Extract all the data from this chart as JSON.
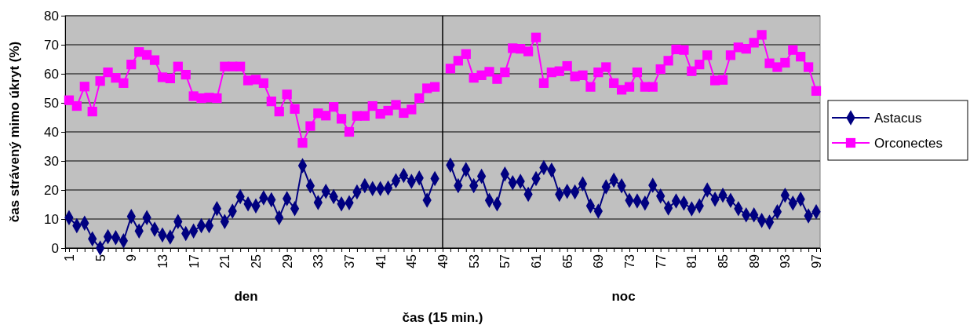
{
  "chart_data": {
    "type": "line",
    "xlabel": "čas (15 min.)",
    "ylabel": "čas strávený mimo úkryt (%)",
    "categories": [
      "1",
      null,
      null,
      null,
      "5",
      null,
      null,
      null,
      "9",
      null,
      null,
      null,
      "13",
      null,
      null,
      null,
      "17",
      null,
      null,
      null,
      "21",
      null,
      null,
      null,
      "25",
      null,
      null,
      null,
      "29",
      null,
      null,
      null,
      "33",
      null,
      null,
      null,
      "37",
      null,
      null,
      null,
      "41",
      null,
      null,
      null,
      "45",
      null,
      null,
      null,
      "49",
      null,
      null,
      null,
      "53",
      null,
      null,
      null,
      "57",
      null,
      null,
      null,
      "61",
      null,
      null,
      null,
      "65",
      null,
      null,
      null,
      "69",
      null,
      null,
      null,
      "73",
      null,
      null,
      null,
      "77",
      null,
      null,
      null,
      "81",
      null,
      null,
      null,
      "85",
      null,
      null,
      null,
      "89",
      null,
      null,
      null,
      "93",
      null,
      null,
      null,
      "97"
    ],
    "series": [
      {
        "name": "Astacus",
        "color": "#000080",
        "marker": "diamond",
        "values": [
          10.5,
          7.7,
          8.6,
          3.2,
          0,
          3.9,
          3.6,
          2.5,
          10.9,
          5.9,
          10.5,
          6.5,
          4.5,
          3.8,
          9.1,
          5,
          5.9,
          7.7,
          7.7,
          13.6,
          9.1,
          12.7,
          17.7,
          15.2,
          14.5,
          17.3,
          16.6,
          10.5,
          17,
          13.6,
          28.4,
          21.4,
          15.7,
          19.5,
          17.7,
          15.2,
          15.6,
          19.3,
          21.5,
          20.5,
          20.5,
          20.7,
          23.2,
          25,
          23,
          24.1,
          16.5,
          23.9,
          null,
          28.6,
          21.5,
          27,
          21.5,
          24.7,
          16.4,
          15.2,
          25.5,
          22.5,
          23,
          18.5,
          23.9,
          27.7,
          26.8,
          18.5,
          19.5,
          19.3,
          22.1,
          14.5,
          12.7,
          21.1,
          23.4,
          21.4,
          16.4,
          16.2,
          15.5,
          21.6,
          17.9,
          13.8,
          16.2,
          15.5,
          13.5,
          14.5,
          20,
          16.8,
          18.2,
          16.4,
          13.6,
          11.4,
          11.4,
          9.5,
          8.9,
          12.5,
          18.2,
          15.5,
          16.8,
          11.1,
          12.5
        ]
      },
      {
        "name": "Orconectes",
        "color": "#ff00ff",
        "marker": "square",
        "values": [
          50.9,
          48.9,
          55.6,
          47,
          57.5,
          60.5,
          58.6,
          56.8,
          63.2,
          67.5,
          66.5,
          64.7,
          58.8,
          58.4,
          62.5,
          59.7,
          52.3,
          51.6,
          51.8,
          51.6,
          62.5,
          62.5,
          62.5,
          57.7,
          58,
          56.8,
          50.5,
          47,
          52.9,
          47.9,
          36.2,
          42,
          46.4,
          45.6,
          48.6,
          44.5,
          40,
          45.5,
          45.5,
          48.9,
          46.2,
          47.3,
          49.3,
          46.5,
          47.7,
          51.6,
          55,
          55.5,
          null,
          61.8,
          64.5,
          66.8,
          58.6,
          59.5,
          60.7,
          58.2,
          60.5,
          68.8,
          68.6,
          67.7,
          72.5,
          56.8,
          60.5,
          60.9,
          62.7,
          59.1,
          59.5,
          55.5,
          60.5,
          62.3,
          56.8,
          54.5,
          55.5,
          60.5,
          55.5,
          55.5,
          61.6,
          64.5,
          68.4,
          68.2,
          60.9,
          63.2,
          66.4,
          57.7,
          57.9,
          66.4,
          69.1,
          68.6,
          70.7,
          73.4,
          63.6,
          62.3,
          63.8,
          68.2,
          65.9,
          62.3,
          54.1
        ]
      }
    ],
    "ylim": [
      0,
      80
    ],
    "yticks": [
      0,
      10,
      20,
      30,
      40,
      50,
      60,
      70,
      80
    ],
    "grid": "y",
    "legend": "right",
    "line_style": "solid",
    "ref_lines": [
      {
        "axis": "x",
        "value": "49",
        "color": "#000000"
      }
    ],
    "annotations": [
      "den",
      "noc"
    ]
  }
}
